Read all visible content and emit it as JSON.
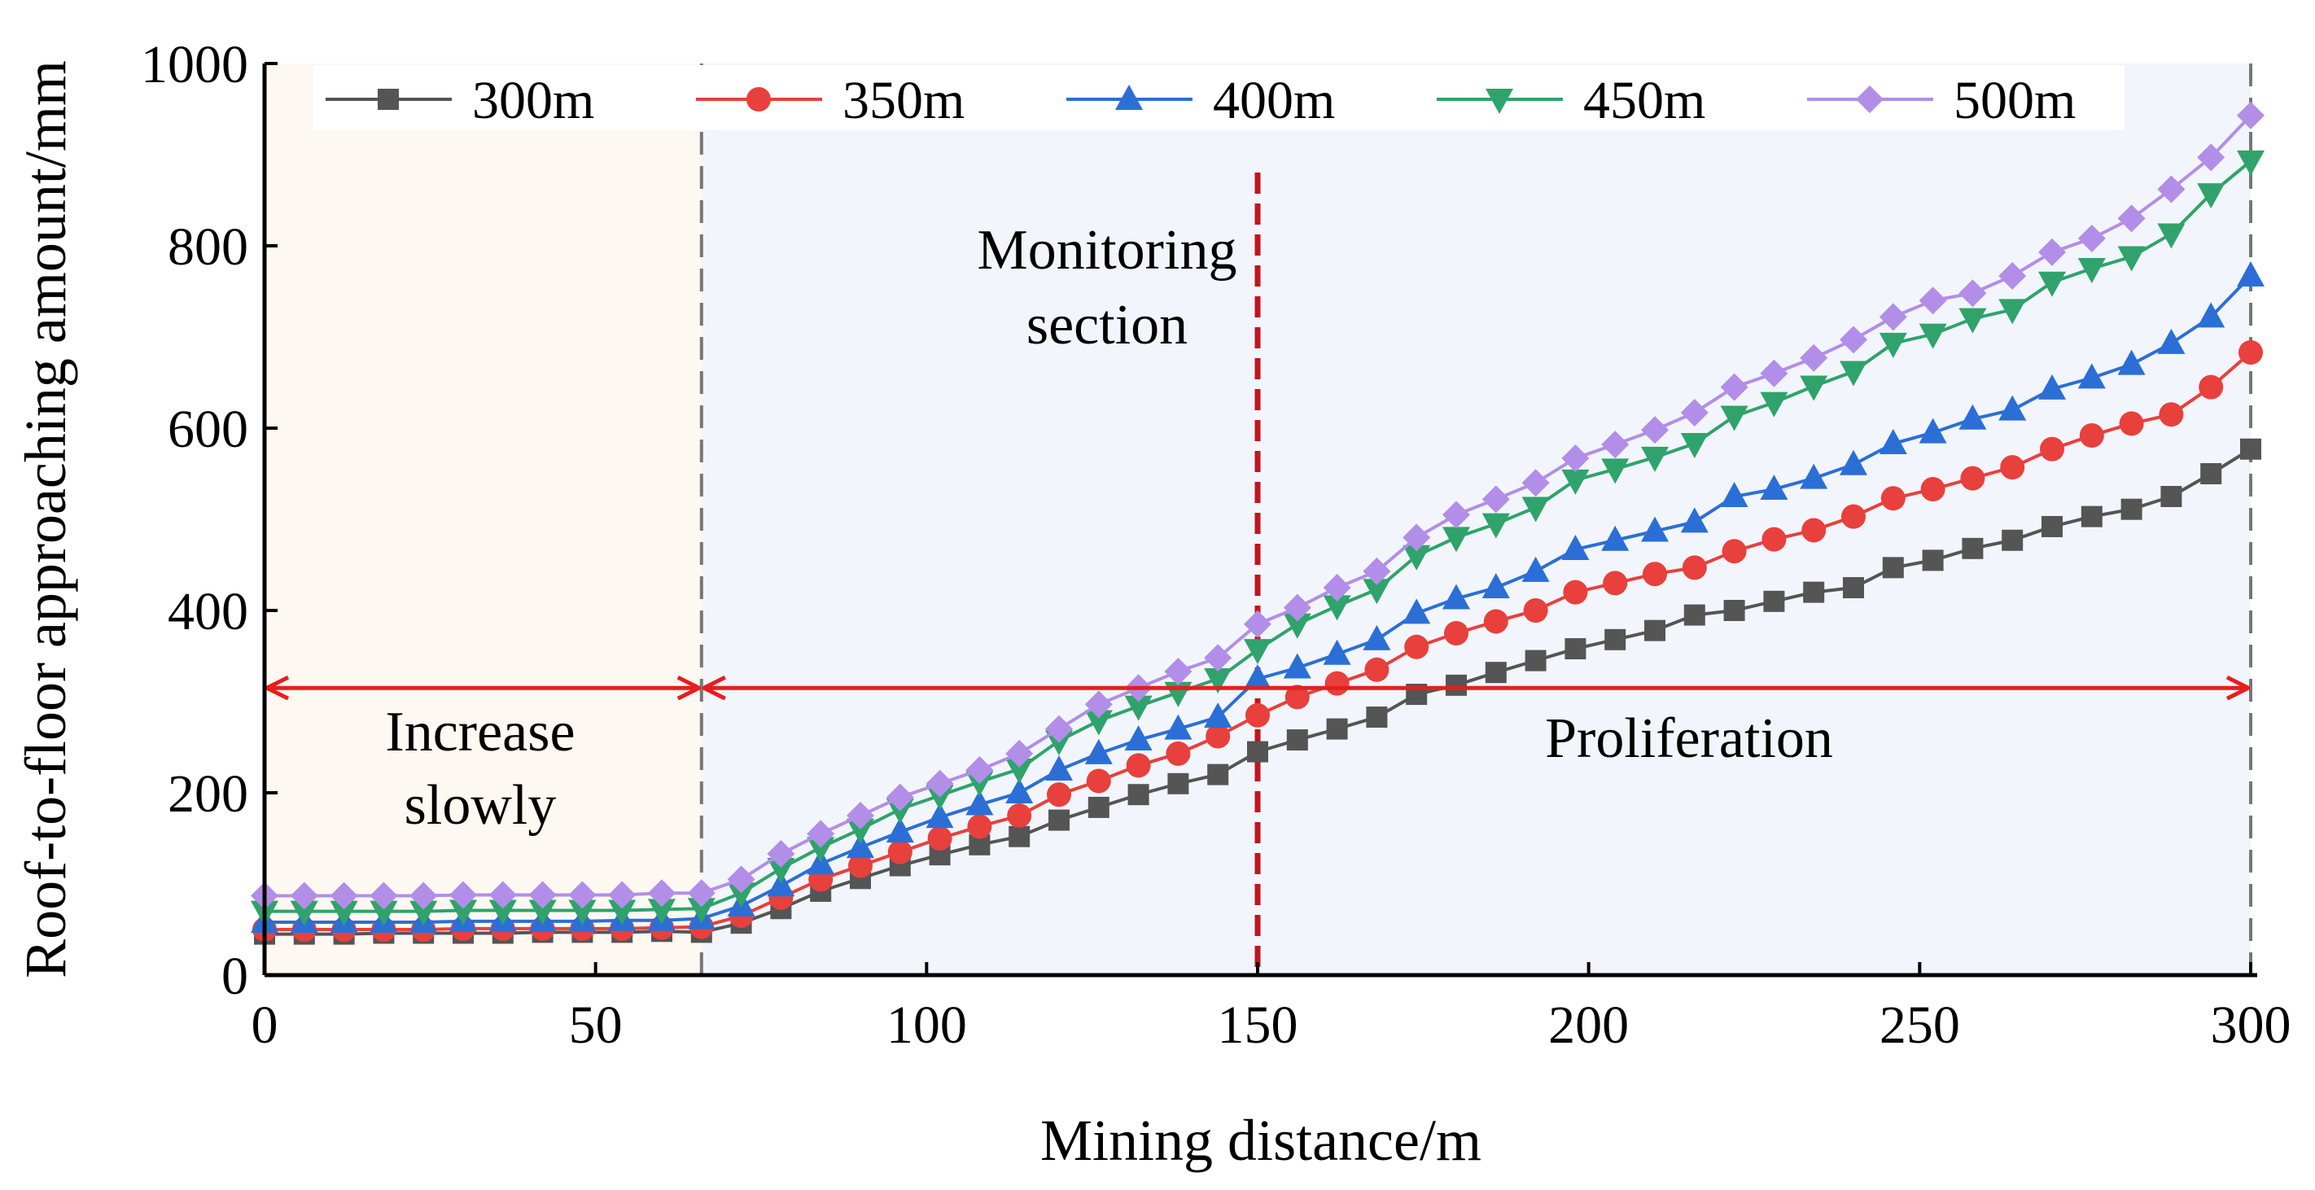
{
  "chart_data": {
    "type": "line",
    "title": "",
    "xlabel": "Mining distance/m",
    "ylabel": "Roof-to-floor approaching amount/mm",
    "xlim": [
      0,
      300
    ],
    "ylim": [
      0,
      1000
    ],
    "xticks": [
      "0",
      "50",
      "100",
      "150",
      "200",
      "250",
      "300"
    ],
    "yticks": [
      "0",
      "200",
      "400",
      "600",
      "800",
      "1000"
    ],
    "grid": false,
    "legend_position": "top",
    "x": [
      0,
      6,
      12,
      18,
      24,
      30,
      36,
      42,
      48,
      54,
      60,
      66,
      72,
      78,
      84,
      90,
      96,
      102,
      108,
      114,
      120,
      126,
      132,
      138,
      144,
      150,
      156,
      162,
      168,
      174,
      180,
      186,
      192,
      198,
      204,
      210,
      216,
      222,
      228,
      234,
      240,
      246,
      252,
      258,
      264,
      270,
      276,
      282,
      288,
      294,
      300
    ],
    "series": [
      {
        "name": "300m",
        "color": "#555555",
        "marker": "square",
        "values": [
          45,
          45,
          45,
          46,
          46,
          46,
          46,
          47,
          47,
          47,
          48,
          47,
          57,
          73,
          92,
          106,
          120,
          132,
          143,
          152,
          170,
          184,
          198,
          210,
          220,
          245,
          258,
          270,
          283,
          308,
          318,
          332,
          345,
          358,
          368,
          378,
          395,
          400,
          410,
          420,
          425,
          447,
          455,
          468,
          477,
          492,
          503,
          511,
          525,
          550,
          577
        ]
      },
      {
        "name": "350m",
        "color": "#e8403c",
        "marker": "circle",
        "values": [
          50,
          50,
          50,
          50,
          50,
          51,
          51,
          51,
          51,
          51,
          52,
          53,
          65,
          85,
          105,
          120,
          135,
          150,
          163,
          175,
          198,
          213,
          230,
          243,
          262,
          285,
          305,
          320,
          335,
          360,
          375,
          388,
          400,
          420,
          430,
          440,
          447,
          465,
          478,
          488,
          503,
          523,
          533,
          545,
          557,
          577,
          592,
          605,
          615,
          645,
          683
        ]
      },
      {
        "name": "400m",
        "color": "#2b6fd6",
        "marker": "triangle-up",
        "values": [
          58,
          58,
          58,
          58,
          58,
          59,
          59,
          59,
          59,
          60,
          60,
          62,
          76,
          98,
          122,
          140,
          157,
          173,
          187,
          200,
          225,
          243,
          258,
          270,
          283,
          325,
          337,
          352,
          368,
          397,
          413,
          425,
          443,
          467,
          477,
          487,
          497,
          525,
          533,
          545,
          560,
          583,
          595,
          610,
          620,
          643,
          655,
          670,
          693,
          722,
          767
        ]
      },
      {
        "name": "450m",
        "color": "#2fa36b",
        "marker": "triangle-down",
        "values": [
          70,
          70,
          70,
          70,
          70,
          71,
          71,
          71,
          71,
          71,
          72,
          73,
          90,
          117,
          140,
          160,
          182,
          197,
          212,
          226,
          257,
          279,
          295,
          310,
          325,
          357,
          385,
          405,
          423,
          460,
          480,
          495,
          513,
          543,
          555,
          568,
          583,
          613,
          628,
          646,
          662,
          693,
          703,
          720,
          730,
          760,
          775,
          788,
          813,
          857,
          893
        ]
      },
      {
        "name": "500m",
        "color": "#b28ee8",
        "marker": "diamond",
        "values": [
          87,
          87,
          87,
          87,
          87,
          88,
          88,
          88,
          88,
          88,
          90,
          90,
          105,
          133,
          155,
          175,
          195,
          210,
          225,
          243,
          270,
          297,
          315,
          333,
          348,
          385,
          403,
          425,
          443,
          480,
          505,
          522,
          540,
          567,
          582,
          598,
          617,
          645,
          660,
          677,
          697,
          722,
          740,
          748,
          767,
          793,
          808,
          830,
          862,
          897,
          943
        ]
      }
    ],
    "regions": [
      {
        "name": "increase-slowly",
        "x_range": [
          0,
          66
        ],
        "color": "#fdf8f1"
      },
      {
        "name": "proliferation",
        "x_range": [
          66,
          300
        ],
        "color": "#f2f5fb"
      }
    ],
    "annotations": {
      "increase_line1": "Increase",
      "increase_line2": "slowly",
      "proliferation": "Proliferation",
      "monitoring_line1": "Monitoring",
      "monitoring_line2": "section",
      "monitoring_x": 150,
      "boundary_x": 66,
      "arrow_y": 315,
      "arrow_color": "#e61e1e",
      "monitoring_color": "#c0161f"
    }
  }
}
